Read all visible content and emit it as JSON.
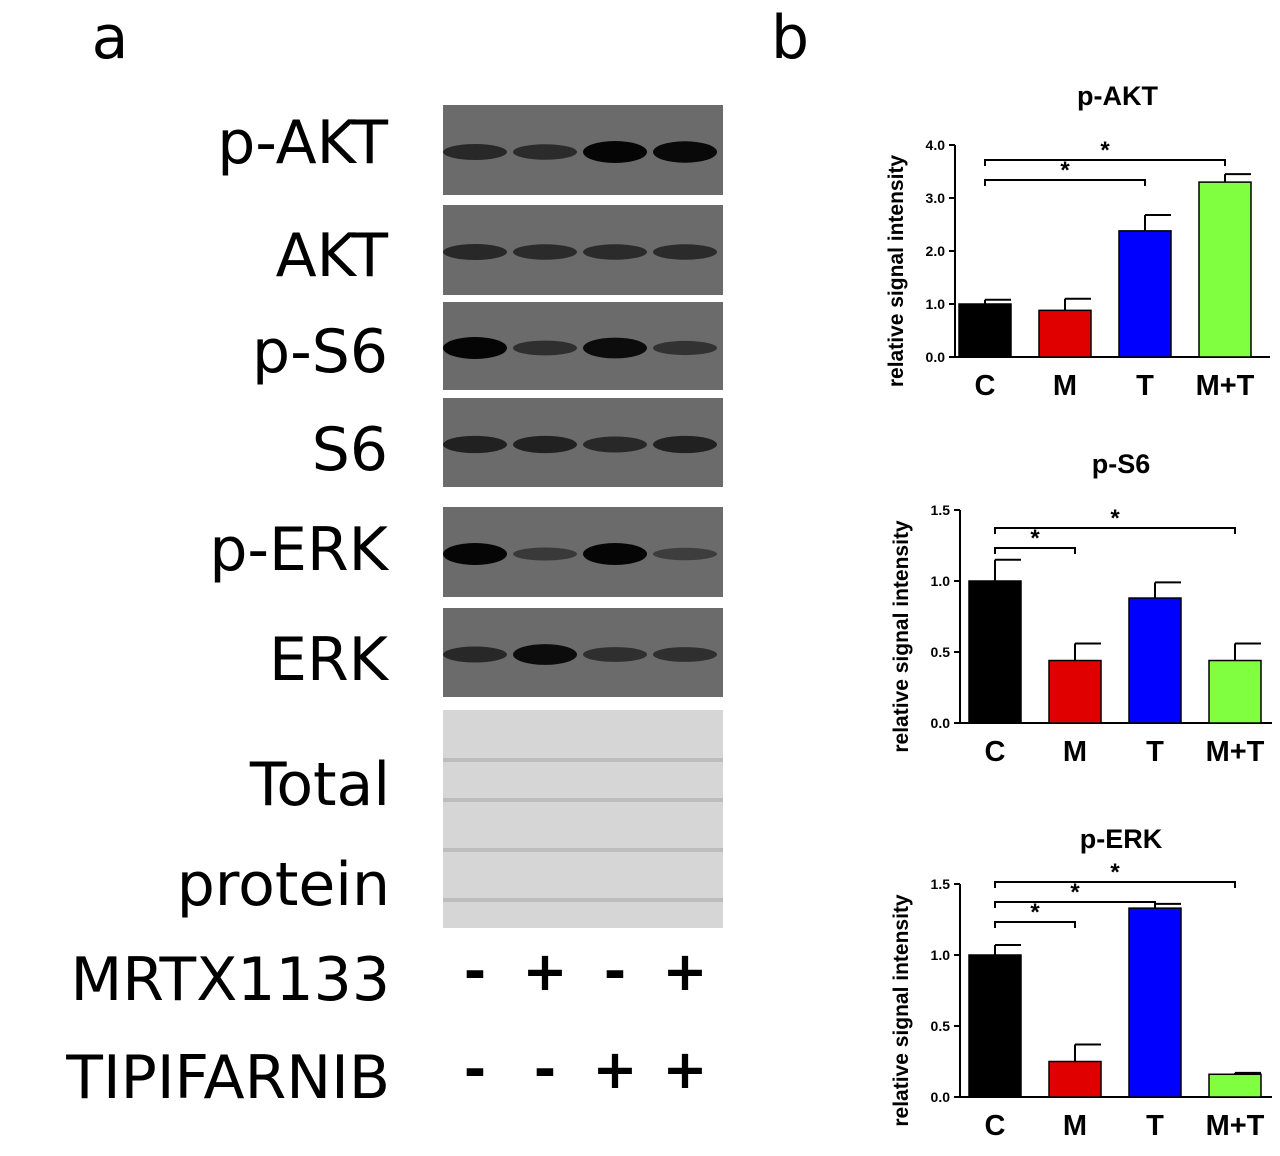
{
  "panel_a": {
    "label": "a",
    "blot_labels": [
      "p-AKT",
      "AKT",
      "p-S6",
      "S6",
      "p-ERK",
      "ERK"
    ],
    "total_label": "Total protein",
    "treatments": [
      {
        "name": "MRTX1133",
        "signs": [
          "-",
          "+",
          "-",
          "+"
        ]
      },
      {
        "name": "TIPIFARNIB",
        "signs": [
          "-",
          "-",
          "+",
          "+"
        ]
      }
    ]
  },
  "panel_b": {
    "label": "b"
  },
  "chart_data": [
    {
      "type": "bar",
      "title": "p-AKT",
      "y_label": "relative signal intensity",
      "categories": [
        "C",
        "M",
        "T",
        "M+T"
      ],
      "values": [
        1.0,
        0.88,
        2.38,
        3.3
      ],
      "errors": [
        0.08,
        0.22,
        0.3,
        0.15
      ],
      "colors": [
        "#000000",
        "#e00000",
        "#0000ff",
        "#80ff40"
      ],
      "ylim": [
        0,
        4
      ],
      "yticks": [
        {
          "value": 0,
          "label": "0.0"
        },
        {
          "value": 1,
          "label": "1.0"
        },
        {
          "value": 2,
          "label": "2.0"
        },
        {
          "value": 3,
          "label": "3.0"
        },
        {
          "value": 4,
          "label": "4.0"
        }
      ],
      "comparisons": [
        {
          "groups": [
            "C",
            "T"
          ],
          "label": "*"
        },
        {
          "groups": [
            "C",
            "M+T"
          ],
          "label": "*"
        }
      ]
    },
    {
      "type": "bar",
      "title": "p-S6",
      "y_label": "relative signal intensity",
      "categories": [
        "C",
        "M",
        "T",
        "M+T"
      ],
      "values": [
        1.0,
        0.44,
        0.88,
        0.44
      ],
      "errors": [
        0.15,
        0.12,
        0.11,
        0.12
      ],
      "colors": [
        "#000000",
        "#e00000",
        "#0000ff",
        "#80ff40"
      ],
      "ylim": [
        0,
        1.5
      ],
      "yticks": [
        {
          "value": 0,
          "label": "0.0"
        },
        {
          "value": 0.5,
          "label": "0.5"
        },
        {
          "value": 1,
          "label": "1.0"
        },
        {
          "value": 1.5,
          "label": "1.5"
        }
      ],
      "comparisons": [
        {
          "groups": [
            "C",
            "M"
          ],
          "label": "*"
        },
        {
          "groups": [
            "C",
            "M+T"
          ],
          "label": "*"
        }
      ]
    },
    {
      "type": "bar",
      "title": "p-ERK",
      "y_label": "relative signal intensity",
      "categories": [
        "C",
        "M",
        "T",
        "M+T"
      ],
      "values": [
        1.0,
        0.25,
        1.33,
        0.16
      ],
      "errors": [
        0.07,
        0.12,
        0.03,
        0.01
      ],
      "colors": [
        "#000000",
        "#e00000",
        "#0000ff",
        "#80ff40"
      ],
      "ylim": [
        0,
        1.5
      ],
      "yticks": [
        {
          "value": 0,
          "label": "0.0"
        },
        {
          "value": 0.5,
          "label": "0.5"
        },
        {
          "value": 1,
          "label": "1.0"
        },
        {
          "value": 1.5,
          "label": "1.5"
        }
      ],
      "comparisons": [
        {
          "groups": [
            "C",
            "M"
          ],
          "label": "*"
        },
        {
          "groups": [
            "C",
            "T"
          ],
          "label": "*"
        },
        {
          "groups": [
            "C",
            "M+T"
          ],
          "label": "*"
        }
      ]
    }
  ]
}
